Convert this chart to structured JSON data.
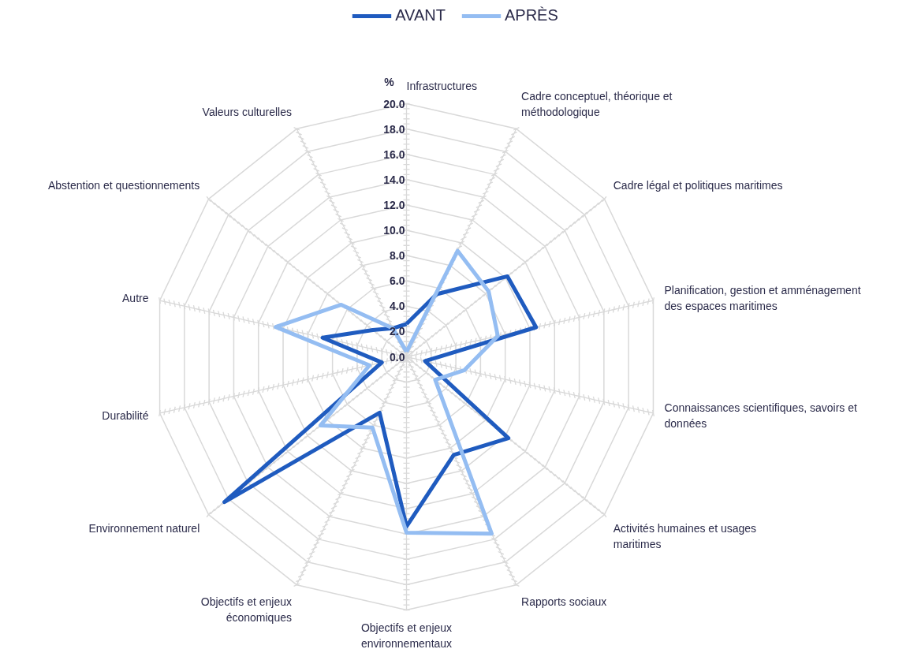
{
  "chart_data": {
    "type": "radar",
    "ylabel": "%",
    "categories": [
      "Infrastructures",
      "Cadre conceptuel, théorique et méthodologique",
      "Cadre légal et politiques maritimes",
      "Planification, gestion et amménagement des espaces maritimes",
      "Connaissances scientifiques, savoirs et données",
      "Activités humaines et usages maritimes",
      "Rapports sociaux",
      "Objectifs et enjeux environnementaux",
      "Objectifs et enjeux économiques",
      "Environnement naturel",
      "Durabilité",
      "Autre",
      "Abstention et questionnements",
      "Valeurs culturelles"
    ],
    "series": [
      {
        "name": "AVANT",
        "color": "#1f5bbf",
        "values": [
          2.6,
          5.5,
          10.2,
          10.5,
          1.5,
          10.3,
          8.6,
          13.4,
          4.9,
          18.4,
          2.0,
          6.8,
          3.4,
          2.5
        ]
      },
      {
        "name": "APRÈS",
        "color": "#94bdf2",
        "values": [
          0.4,
          9.3,
          8.3,
          7.4,
          4.7,
          2.9,
          15.5,
          13.9,
          6.2,
          8.7,
          3.0,
          10.6,
          6.6,
          2.5
        ]
      }
    ],
    "ylim": [
      0,
      20
    ],
    "yticks": [
      {
        "value": 0,
        "label": "0.0"
      },
      {
        "value": 2,
        "label": "2.0"
      },
      {
        "value": 4,
        "label": "4.0"
      },
      {
        "value": 6,
        "label": "6.0"
      },
      {
        "value": 8,
        "label": "8.0"
      },
      {
        "value": 10,
        "label": "10.0"
      },
      {
        "value": 12,
        "label": "12.0"
      },
      {
        "value": 14,
        "label": "14.0"
      },
      {
        "value": 16,
        "label": "16.0"
      },
      {
        "value": 18,
        "label": "18.0"
      },
      {
        "value": 20,
        "label": "20.0"
      }
    ],
    "grid": true,
    "legend": "top",
    "line_style": "solid"
  }
}
